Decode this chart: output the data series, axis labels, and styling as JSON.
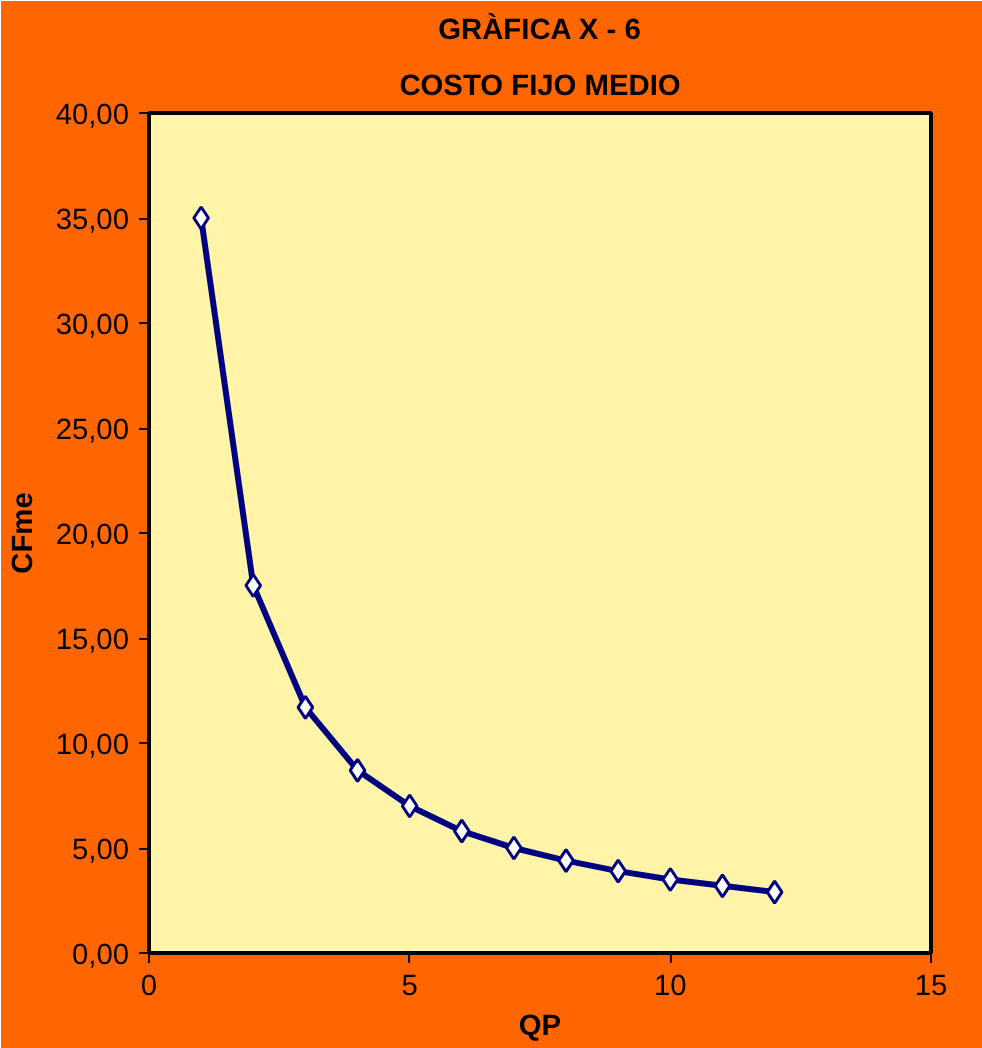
{
  "chart_data": {
    "type": "line",
    "title": "GRÀFICA X - 6",
    "subtitle": "COSTO FIJO MEDIO",
    "xlabel": "QP",
    "ylabel": "CFme",
    "x": [
      1,
      2,
      3,
      4,
      5,
      6,
      7,
      8,
      9,
      10,
      11,
      12
    ],
    "series": [
      {
        "color": "#000080",
        "values": [
          35,
          17.5,
          11.7,
          8.7,
          7,
          5.8,
          5,
          4.4,
          3.9,
          3.5,
          3.2,
          2.9
        ]
      }
    ],
    "xlim": [
      0,
      15
    ],
    "xticks": [
      0,
      5,
      10,
      15
    ],
    "ylim": [
      0,
      40
    ],
    "yticks": [
      {
        "value": 0,
        "label": "0,00"
      },
      {
        "value": 5,
        "label": "5,00"
      },
      {
        "value": 10,
        "label": "10,00"
      },
      {
        "value": 15,
        "label": "15,00"
      },
      {
        "value": 20,
        "label": "20,00"
      },
      {
        "value": 25,
        "label": "25,00"
      },
      {
        "value": 30,
        "label": "30,00"
      },
      {
        "value": 35,
        "label": "35,00"
      },
      {
        "value": 40,
        "label": "40,00"
      }
    ],
    "marker": "diamond",
    "line_style": "solid",
    "grid": false
  }
}
